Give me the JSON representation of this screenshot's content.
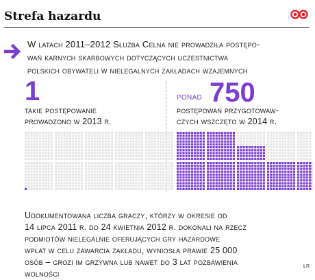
{
  "header": {
    "title": "Strefa hazardu",
    "logo": "dgp-logo-icon",
    "accent": "#e2232a"
  },
  "intro": {
    "lines": [
      "W latach 2011–2012 Służba Celna nie prowadziła postępo-",
      "wań karnych skarbowych dotyczących uczestnictwa",
      "polskich obywateli w nielegalnych zakładach wzajemnych"
    ]
  },
  "left": {
    "value": "1",
    "caption": [
      "takie postępowanie",
      "prowadzono w 2013 r."
    ],
    "filled": 1,
    "grid_total": 1000
  },
  "right": {
    "prefix": "ponad",
    "value": "750",
    "caption": [
      "postępowań przygotowaw-",
      "czych wszczęto w 2014 r."
    ],
    "filled": 750,
    "grid_total": 1000
  },
  "footer": {
    "lines": [
      "Udokumentowana liczba graczy, którzy w okresie od",
      "14 lipca 2011 r. do 24 kwietnia 2012 r. dokonali na rzecz",
      "podmiotów nielegalnie oferujących gry hazardowe",
      "wpłat w celu zawarcia zakładu, wyniosła prawie 25 000",
      "osób – grozi im grzywna lub nawet do 3 lat pozbawienia",
      "wolności"
    ]
  },
  "credit": "ŁR",
  "colors": {
    "accent": "#7b3fd0",
    "empty": "#e6e6e6"
  }
}
